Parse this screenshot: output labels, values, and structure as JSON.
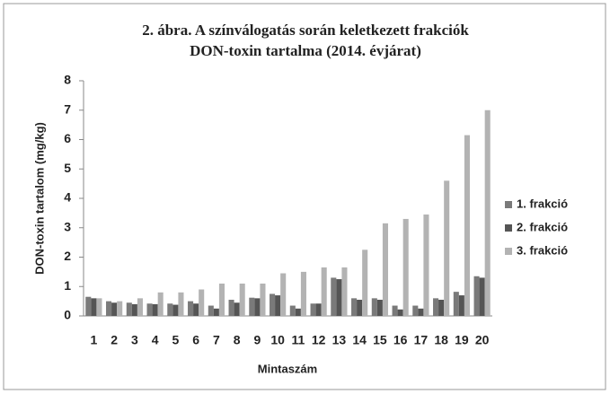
{
  "chart_data": {
    "type": "bar",
    "title": [
      "2. ábra. A színválogatás során keletkezett frakciók",
      "DON-toxin tartalma (2014. évjárat)"
    ],
    "x_label": "Mintaszám",
    "y_label": "DON-toxin tartalom (mg/kg)",
    "categories": [
      "1",
      "2",
      "3",
      "4",
      "5",
      "6",
      "7",
      "8",
      "9",
      "10",
      "11",
      "12",
      "13",
      "14",
      "15",
      "16",
      "17",
      "18",
      "19",
      "20"
    ],
    "series": [
      {
        "name": "1. frakció",
        "color": "#7a7a7a",
        "values": [
          0.65,
          0.5,
          0.45,
          0.42,
          0.42,
          0.5,
          0.35,
          0.55,
          0.62,
          0.75,
          0.35,
          0.42,
          1.3,
          0.6,
          0.6,
          0.35,
          0.35,
          0.6,
          0.82,
          1.35
        ]
      },
      {
        "name": "2. frakció",
        "color": "#555555",
        "values": [
          0.6,
          0.45,
          0.4,
          0.4,
          0.38,
          0.42,
          0.25,
          0.45,
          0.6,
          0.7,
          0.25,
          0.42,
          1.25,
          0.55,
          0.55,
          0.22,
          0.25,
          0.55,
          0.7,
          1.3
        ]
      },
      {
        "name": "3. frakció",
        "color": "#b3b3b3",
        "values": [
          0.6,
          0.5,
          0.6,
          0.8,
          0.8,
          0.9,
          1.1,
          1.1,
          1.1,
          1.45,
          1.5,
          1.65,
          1.65,
          2.25,
          3.15,
          3.3,
          3.45,
          4.6,
          6.15,
          7.0
        ]
      }
    ],
    "ylim": [
      0,
      8
    ],
    "yticks": [
      0,
      1,
      2,
      3,
      4,
      5,
      6,
      7,
      8
    ],
    "grid": false,
    "legend": "right"
  }
}
